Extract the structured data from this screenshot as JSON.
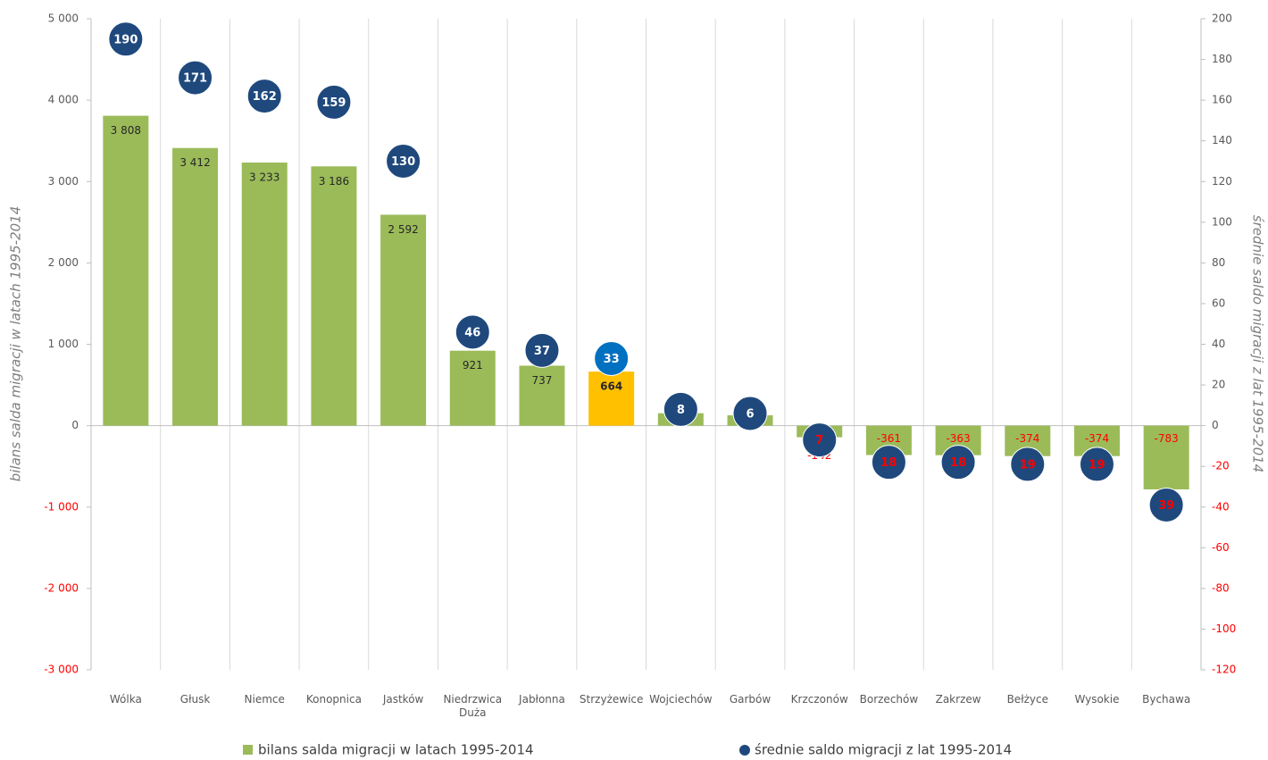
{
  "chart_data": {
    "type": "bar",
    "categories": [
      "Wólka",
      "Głusk",
      "Niemce",
      "Konopnica",
      "Jastków",
      "Niedrzwica Duża",
      "Jabłonna",
      "Strzyżewice",
      "Wojciechów",
      "Garbów",
      "Krzczonów",
      "Borzechów",
      "Zakrzew",
      "Bełżyce",
      "Wysokie",
      "Bychawa"
    ],
    "series": [
      {
        "name": "bilans salda migracji w latach 1995-2014",
        "type": "bar",
        "color": "#9bbb59",
        "point_colors": [
          "#9bbb59",
          "#9bbb59",
          "#9bbb59",
          "#9bbb59",
          "#9bbb59",
          "#9bbb59",
          "#9bbb59",
          "#ffc000",
          "#9bbb59",
          "#9bbb59",
          "#9bbb59",
          "#9bbb59",
          "#9bbb59",
          "#9bbb59",
          "#9bbb59",
          "#9bbb59"
        ],
        "values": [
          3808,
          3412,
          3233,
          3186,
          2592,
          921,
          737,
          664,
          153,
          127,
          -142,
          -361,
          -363,
          -374,
          -374,
          -783
        ],
        "value_labels": [
          "3 808",
          "3 412",
          "3 233",
          "3 186",
          "2 592",
          "921",
          "737",
          "664",
          "153",
          "127",
          "-142",
          "-361",
          "-363",
          "-374",
          "-374",
          "-783"
        ]
      },
      {
        "name": "średnie saldo migracji z lat 1995-2014",
        "type": "scatter",
        "axis": "y2",
        "color": "#1f497d",
        "point_colors": [
          "#1f497d",
          "#1f497d",
          "#1f497d",
          "#1f497d",
          "#1f497d",
          "#1f497d",
          "#1f497d",
          "#0070c0",
          "#1f497d",
          "#1f497d",
          "#1f497d",
          "#1f497d",
          "#1f497d",
          "#1f497d",
          "#1f497d",
          "#1f497d"
        ],
        "values": [
          190,
          171,
          162,
          159,
          130,
          46,
          37,
          33,
          8,
          6,
          -7,
          -18,
          -18,
          -19,
          -19,
          -39
        ],
        "value_labels": [
          "190",
          "171",
          "162",
          "159",
          "130",
          "46",
          "37",
          "33",
          "8",
          "6",
          "7",
          "18",
          "18",
          "19",
          "19",
          "39"
        ]
      }
    ],
    "y_label": "bilans salda migracji w latach 1995-2014",
    "y2_label": "średnie saldo migracji z lat 1995-2014",
    "ylim": [
      -3000,
      5000
    ],
    "yticks": [
      {
        "value": -3000,
        "label": "-3 000"
      },
      {
        "value": -2000,
        "label": "-2 000"
      },
      {
        "value": -1000,
        "label": "-1 000"
      },
      0,
      {
        "value": 1000,
        "label": "1 000"
      },
      {
        "value": 2000,
        "label": "2 000"
      },
      {
        "value": 3000,
        "label": "3 000"
      },
      {
        "value": 4000,
        "label": "4 000"
      },
      {
        "value": 5000,
        "label": "5 000"
      }
    ],
    "y2lim": [
      -120,
      200
    ],
    "y2ticks": [
      -120,
      -100,
      -80,
      -60,
      -40,
      -20,
      0,
      20,
      40,
      60,
      80,
      100,
      120,
      140,
      160,
      180,
      200
    ],
    "negative_color": "#ff0000",
    "legend": "bottom"
  }
}
